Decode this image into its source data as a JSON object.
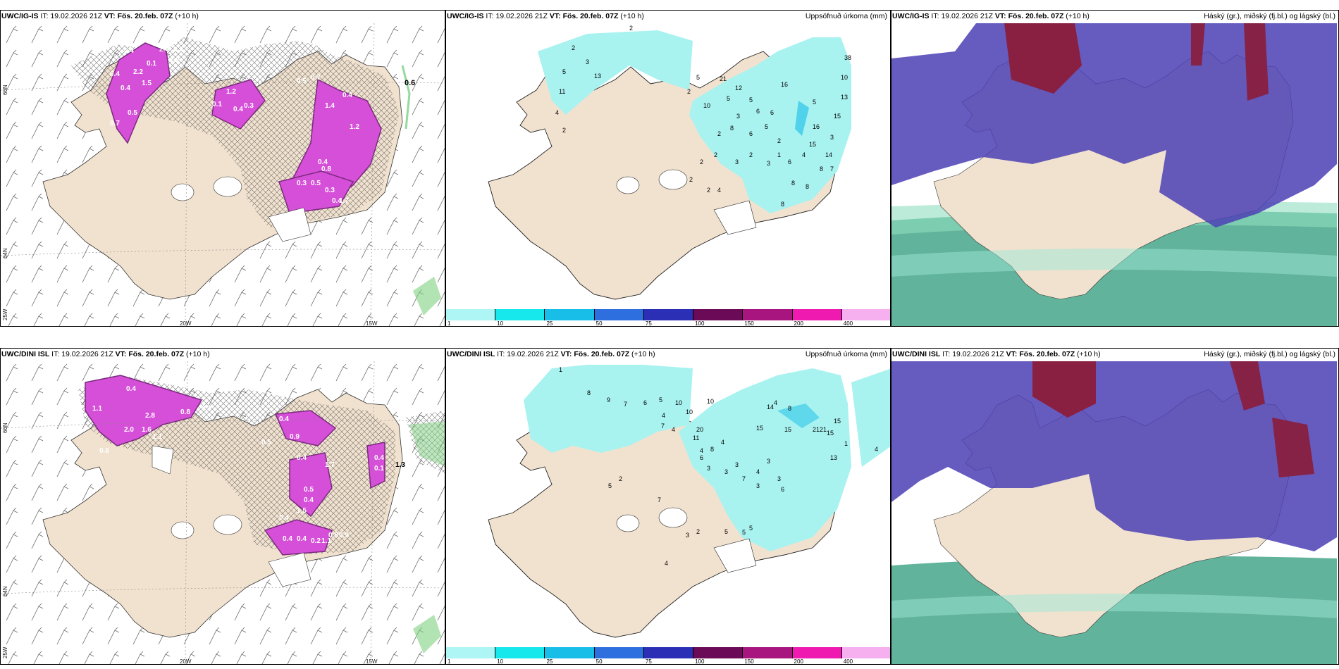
{
  "colors": {
    "land": "#f1e2cf",
    "sea": "#ffffff",
    "precip_light": "#a8f2f0",
    "snow_pink": "#d64fd8",
    "snow_dark": "#7a2a7e",
    "cloud_high": "#8b1c3a",
    "cloud_mid": "#4b3fb5",
    "cloud_low": "#2e9a7a"
  },
  "panels": [
    {
      "id": "p1",
      "model": "UWC/IG-IS",
      "it_label": "IT:",
      "it": "19.02.2026 21Z",
      "vt_label": "VT:",
      "vt": "Fös. 20.feb. 07Z",
      "lead": "(+10 h)",
      "right": "",
      "val": "0.6"
    },
    {
      "id": "p2",
      "model": "UWC/IG-IS",
      "it_label": "IT:",
      "it": "19.02.2026 21Z",
      "vt_label": "VT:",
      "vt": "Fös. 20.feb. 07Z",
      "lead": "(+10 h)",
      "right": "Uppsöfnuð úrkoma (mm)"
    },
    {
      "id": "p3",
      "model": "UWC/IG-IS",
      "it_label": "IT:",
      "it": "19.02.2026 21Z",
      "vt_label": "VT:",
      "vt": "Fös. 20.feb. 07Z",
      "lead": "(+10 h)",
      "right": "Háský (gr.), miðský (fj.bl.) og lágský (bl.)"
    },
    {
      "id": "p4",
      "model": "UWC/DINI ISL",
      "it_label": "IT:",
      "it": "19.02.2026 21Z",
      "vt_label": "VT:",
      "vt": "Fös. 20.feb. 07Z",
      "lead": "(+10 h)",
      "right": "",
      "val": "1.3"
    },
    {
      "id": "p5",
      "model": "UWC/DINI ISL",
      "it_label": "IT:",
      "it": "19.02.2026 21Z",
      "vt_label": "VT:",
      "vt": "Fös. 20.feb. 07Z",
      "lead": "(+10 h)",
      "right": "Uppsöfnuð úrkoma (mm)"
    },
    {
      "id": "p6",
      "model": "UWC/DINI ISL",
      "it_label": "IT:",
      "it": "19.02.2026 21Z",
      "vt_label": "VT:",
      "vt": "Fös. 20.feb. 07Z",
      "lead": "(+10 h)",
      "right": "Háský (gr.), miðský (fj.bl.) og lágský (bl.)"
    }
  ],
  "axes": {
    "lat66": "66N",
    "lat64": "64N",
    "lon25": "25W",
    "lon20": "20W",
    "lon15": "15W"
  },
  "colorbar": {
    "colors": [
      "#aef5f5",
      "#16e8ec",
      "#18bde8",
      "#2e6fe0",
      "#2a2fb6",
      "#6b0a56",
      "#a8157e",
      "#ef1ab0",
      "#f6b0f0"
    ],
    "labels": [
      "1",
      "10",
      "25",
      "50",
      "75",
      "100",
      "150",
      "200",
      "400"
    ]
  },
  "precip_values_top": [
    "2",
    "2",
    "3",
    "13",
    "5",
    "11",
    "4",
    "2",
    "2",
    "5",
    "10",
    "21",
    "12",
    "5",
    "3",
    "8",
    "5",
    "6",
    "6",
    "16",
    "5",
    "38",
    "10",
    "13",
    "15",
    "3",
    "2",
    "6",
    "5",
    "2",
    "1",
    "3",
    "2",
    "3",
    "2",
    "2",
    "2",
    "2",
    "4",
    "8",
    "8",
    "15",
    "16",
    "4",
    "6",
    "8",
    "14",
    "7",
    "8"
  ],
  "precip_values_bottom": [
    "1",
    "8",
    "9",
    "7",
    "6",
    "5",
    "10",
    "4",
    "7",
    "4",
    "10",
    "20",
    "10",
    "4",
    "4",
    "15",
    "14",
    "4",
    "8",
    "15",
    "2121",
    "15",
    "13",
    "1",
    "4",
    "11",
    "8",
    "15",
    "2",
    "5",
    "6",
    "3",
    "3",
    "3",
    "7",
    "4",
    "3",
    "3",
    "3",
    "6",
    "5",
    "5",
    "5",
    "2",
    "3",
    "4",
    "7"
  ],
  "snow_values_top": [
    "0.4",
    "2.2",
    "1.5",
    "0.1",
    "1.2",
    "0.9",
    "2.4",
    "0.4",
    "0.4",
    "0.7",
    "0.5",
    "1.2",
    "0.3",
    "0.1",
    "0.4",
    "0.5",
    "0.7",
    "1.4",
    "0.4",
    "1.2",
    "0.4",
    "0.8",
    "0.3",
    "0.5",
    "0.3",
    "0.4",
    "1.7"
  ],
  "snow_values_bottom": [
    "0.4",
    "2.8",
    "2.0",
    "1.1",
    "0.6",
    "1.6",
    "1.1",
    "0.8",
    "0.4",
    "0.5",
    "0.4",
    "0.9",
    "0.4",
    "1.7",
    "0.5",
    "0.4",
    "1.5",
    "0.4",
    "0.4",
    "0.4",
    "0.2",
    "1.1",
    "0.8",
    "0.9",
    "0.4",
    "0.1"
  ]
}
